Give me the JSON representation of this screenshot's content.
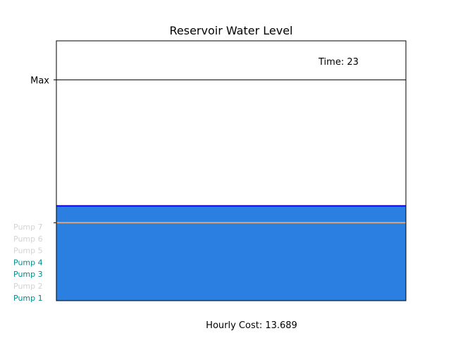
{
  "chart_data": {
    "type": "area",
    "title": "Reservoir Water Level",
    "ylabel": "",
    "xlabel": "",
    "ylim": [
      0,
      100
    ],
    "y_ticks": [
      {
        "label": "Max",
        "value": 85
      },
      {
        "label": "",
        "value": 30
      }
    ],
    "water_level": 36.5,
    "threshold_level": 30,
    "time_label": "Time: 23",
    "cost_label": "Hourly Cost: 13.689",
    "pumps": [
      {
        "label": "Pump 7",
        "active": false
      },
      {
        "label": "Pump 6",
        "active": false
      },
      {
        "label": "Pump 5",
        "active": false
      },
      {
        "label": "Pump 4",
        "active": true
      },
      {
        "label": "Pump 3",
        "active": true
      },
      {
        "label": "Pump 2",
        "active": false
      },
      {
        "label": "Pump 1",
        "active": true
      }
    ],
    "colors": {
      "water_fill": "#2a7fe0",
      "water_surface": "#0000ff",
      "threshold_line": "#d9a87a",
      "max_line": "#000000",
      "pump_active": "#008b8b",
      "pump_inactive": "#d3d3d3"
    }
  }
}
